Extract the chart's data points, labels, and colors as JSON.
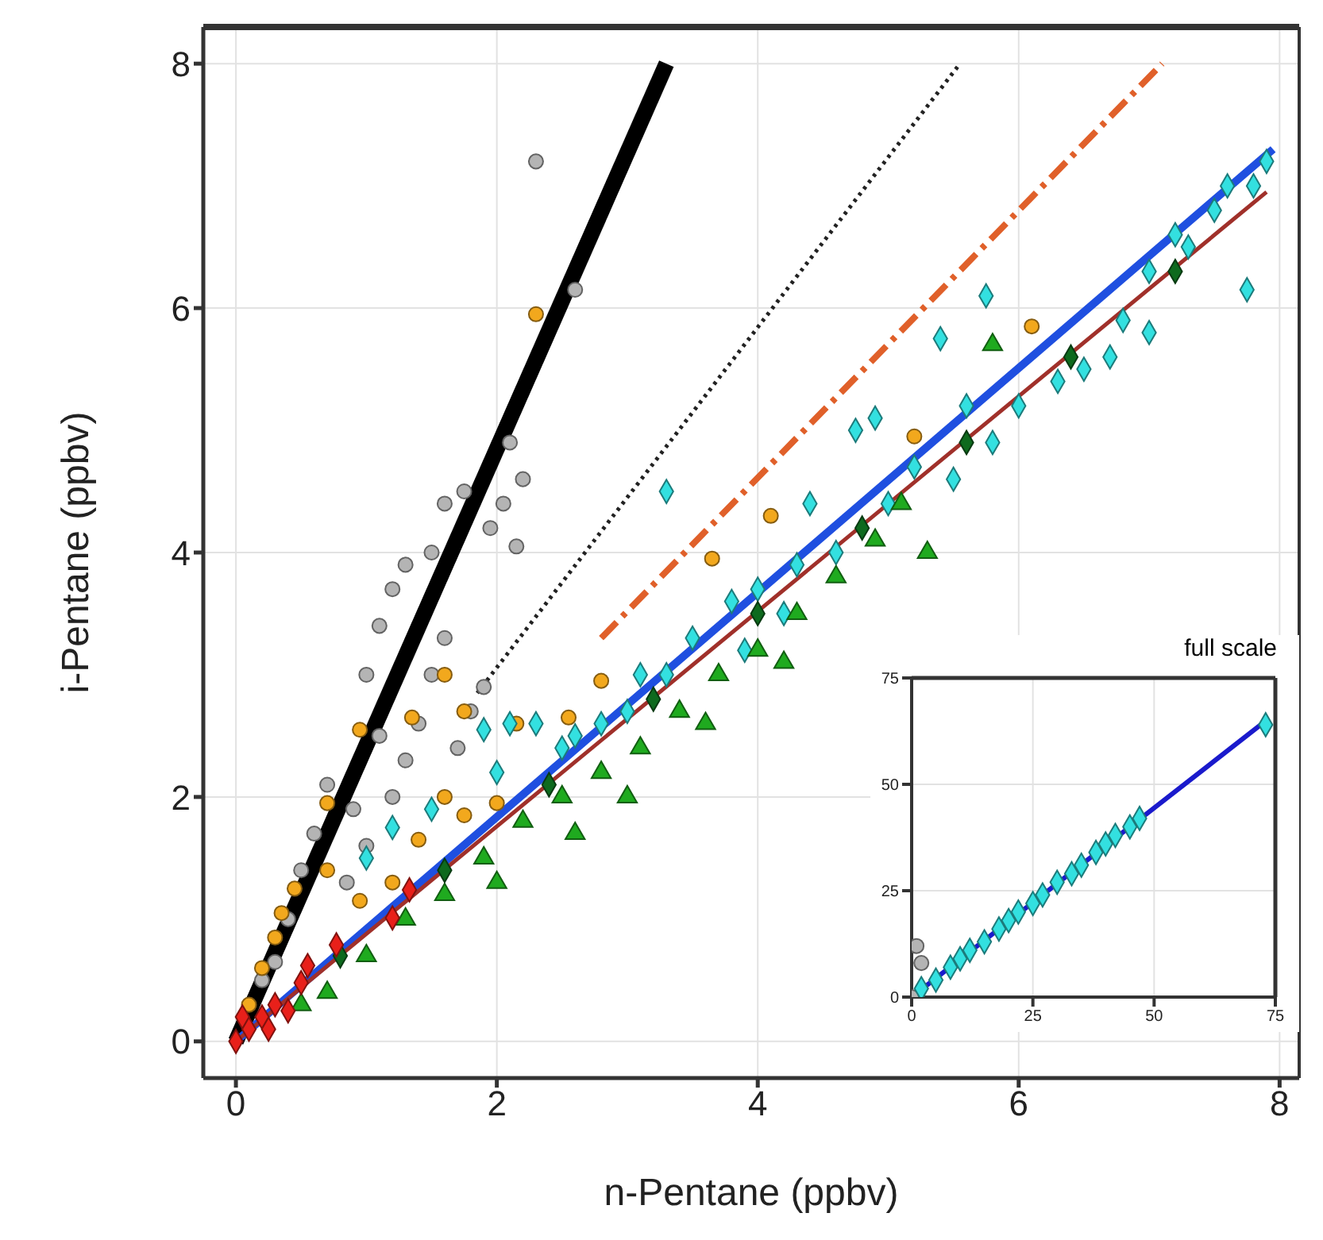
{
  "chart_data": [
    {
      "type": "scatter",
      "xlabel": "n-Pentane (ppbv)",
      "ylabel": "i-Pentane (ppbv)",
      "xlim": [
        -0.25,
        8.15
      ],
      "ylim": [
        -0.3,
        8.3
      ],
      "xticks": [
        0,
        2,
        4,
        6,
        8
      ],
      "yticks": [
        0,
        2,
        4,
        6,
        8
      ],
      "grid": true,
      "series": [
        {
          "type": "scatter",
          "marker": "circle",
          "color": "#b4b4b4",
          "x": [
            2.3,
            2.6,
            2.1,
            2.2,
            2.05,
            1.95,
            1.75,
            1.6,
            1.5,
            1.3,
            1.2,
            1.1,
            1.0,
            1.6,
            1.5,
            1.4,
            1.3,
            1.2,
            1.0,
            0.9,
            0.7,
            1.7,
            1.8,
            0.5,
            0.4,
            0.3,
            0.2,
            2.15,
            1.9,
            1.1,
            0.85,
            0.6
          ],
          "values": [
            7.2,
            6.15,
            4.9,
            4.6,
            4.4,
            4.2,
            4.5,
            4.4,
            4.0,
            3.9,
            3.7,
            3.4,
            3.0,
            3.3,
            3.0,
            2.6,
            2.3,
            2.0,
            1.6,
            1.9,
            2.1,
            2.4,
            2.7,
            1.4,
            1.0,
            0.65,
            0.5,
            4.05,
            2.9,
            2.5,
            1.3,
            1.7
          ]
        },
        {
          "type": "scatter",
          "marker": "circle",
          "color": "#f2a81d",
          "x": [
            2.3,
            0.95,
            1.35,
            0.7,
            2.15,
            2.55,
            2.8,
            1.6,
            1.75,
            1.6,
            1.75,
            0.7,
            0.45,
            0.95,
            1.4,
            3.65,
            0.35,
            4.1,
            6.1,
            5.2,
            0.2,
            0.1,
            0.3,
            1.2,
            2.0
          ],
          "values": [
            5.95,
            2.55,
            2.65,
            1.95,
            2.6,
            2.65,
            2.95,
            3.0,
            2.7,
            2.0,
            1.85,
            1.4,
            1.25,
            1.15,
            1.65,
            3.95,
            1.05,
            4.3,
            5.85,
            4.95,
            0.6,
            0.3,
            0.85,
            1.3,
            1.95
          ]
        },
        {
          "type": "scatter",
          "marker": "diamond",
          "color": "#33e0e0",
          "x": [
            1.9,
            2.1,
            2.3,
            2.6,
            2.0,
            1.5,
            1.2,
            1.0,
            2.5,
            3.0,
            3.3,
            3.5,
            3.8,
            4.0,
            4.3,
            4.6,
            5.0,
            5.2,
            5.4,
            5.6,
            5.75,
            4.75,
            4.9,
            4.4,
            3.3,
            6.3,
            6.5,
            6.8,
            7.0,
            7.2,
            7.5,
            7.8,
            7.9,
            7.75,
            7.3,
            7.0,
            6.7,
            6.0,
            5.8,
            5.5,
            4.2,
            3.9,
            3.1,
            2.8,
            7.6
          ],
          "values": [
            2.55,
            2.6,
            2.6,
            2.5,
            2.2,
            1.9,
            1.75,
            1.5,
            2.4,
            2.7,
            3.0,
            3.3,
            3.6,
            3.7,
            3.9,
            4.0,
            4.4,
            4.7,
            5.75,
            5.2,
            6.1,
            5.0,
            5.1,
            4.4,
            4.5,
            5.4,
            5.5,
            5.9,
            6.3,
            6.6,
            6.8,
            7.0,
            7.2,
            6.15,
            6.5,
            5.8,
            5.6,
            5.2,
            4.9,
            4.6,
            3.5,
            3.2,
            3.0,
            2.6,
            7.0
          ]
        },
        {
          "type": "scatter",
          "marker": "triangle",
          "color": "#1faa1f",
          "x": [
            5.3,
            5.8,
            1.0,
            1.3,
            1.6,
            1.9,
            2.2,
            2.5,
            2.8,
            3.1,
            3.4,
            3.7,
            4.0,
            4.3,
            4.6,
            2.0,
            2.6,
            3.0,
            0.7,
            0.5,
            4.9,
            5.1,
            4.2,
            3.6
          ],
          "values": [
            4.0,
            5.7,
            0.7,
            1.0,
            1.2,
            1.5,
            1.8,
            2.0,
            2.2,
            2.4,
            2.7,
            3.0,
            3.2,
            3.5,
            3.8,
            1.3,
            1.7,
            2.0,
            0.4,
            0.3,
            4.1,
            4.4,
            3.1,
            2.6
          ]
        },
        {
          "type": "line",
          "line_style": "solid",
          "color": "#000000",
          "x": [
            0,
            3.3
          ],
          "values": [
            0,
            8.0
          ]
        },
        {
          "type": "line",
          "line_style": "dotted",
          "color": "#222222",
          "x": [
            1.85,
            5.55
          ],
          "values": [
            2.85,
            8.0
          ]
        },
        {
          "type": "line",
          "line_style": "dashed",
          "color": "#e0602a",
          "x": [
            2.8,
            7.1
          ],
          "values": [
            3.3,
            8.0
          ]
        },
        {
          "type": "line",
          "line_style": "solid",
          "color": "#1f4fe0",
          "x": [
            0,
            7.95
          ],
          "values": [
            0,
            7.3
          ]
        },
        {
          "type": "line",
          "line_style": "solid",
          "color": "#a0302a",
          "x": [
            0,
            7.9
          ],
          "values": [
            0,
            6.95
          ]
        },
        {
          "type": "scatter",
          "marker": "diamond",
          "color": "#0e6a1e",
          "x": [
            0.8,
            1.6,
            2.4,
            3.2,
            4.0,
            4.8,
            5.6,
            6.4,
            7.2
          ],
          "values": [
            0.7,
            1.4,
            2.1,
            2.8,
            3.5,
            4.2,
            4.9,
            5.6,
            6.3
          ]
        },
        {
          "type": "scatter",
          "marker": "diamond",
          "color": "#e8201a",
          "x": [
            0,
            0.05,
            0.1,
            0.2,
            0.3,
            0.5,
            0.55,
            0.77,
            1.2,
            1.33,
            0.4,
            0.25
          ],
          "values": [
            0,
            0.2,
            0.1,
            0.2,
            0.3,
            0.48,
            0.62,
            0.79,
            1.01,
            1.24,
            0.25,
            0.1
          ]
        }
      ]
    },
    {
      "type": "scatter",
      "title": "full scale",
      "xlim": [
        0,
        75
      ],
      "ylim": [
        0,
        75
      ],
      "xticks": [
        0,
        25,
        50,
        75
      ],
      "yticks": [
        0,
        25,
        50,
        75
      ],
      "grid": true,
      "series": [
        {
          "type": "line",
          "line_style": "solid",
          "color": "#1a1acc",
          "x": [
            0,
            72
          ],
          "values": [
            0,
            64
          ]
        },
        {
          "type": "scatter",
          "marker": "circle",
          "color": "#b4b4b4",
          "x": [
            0,
            2,
            1
          ],
          "values": [
            0,
            8,
            12
          ]
        },
        {
          "type": "scatter",
          "marker": "diamond",
          "color": "#33e0e0",
          "x": [
            2,
            5,
            8,
            10,
            12,
            15,
            18,
            20,
            22,
            25,
            27,
            30,
            33,
            35,
            38,
            40,
            42,
            45,
            47,
            73
          ],
          "values": [
            2,
            4,
            7,
            9,
            11,
            13,
            16,
            18,
            20,
            22,
            24,
            27,
            29,
            31,
            34,
            36,
            38,
            40,
            42,
            64
          ]
        }
      ]
    }
  ]
}
